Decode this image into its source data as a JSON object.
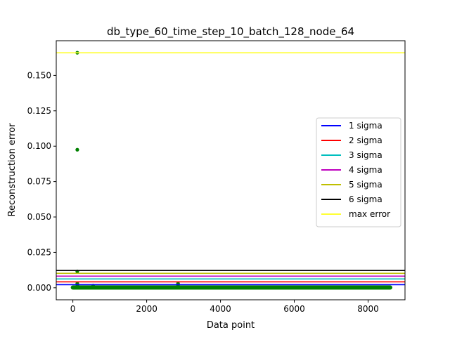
{
  "chart_data": {
    "type": "scatter",
    "title": "db_type_60_time_step_10_batch_128_node_64",
    "xlabel": "Data point",
    "ylabel": "Reconstruction error",
    "xlim": [
      -450,
      9000
    ],
    "ylim": [
      -0.0085,
      0.1745
    ],
    "xticks": [
      0,
      2000,
      4000,
      6000,
      8000
    ],
    "xtick_labels": [
      "0",
      "2000",
      "4000",
      "6000",
      "8000"
    ],
    "yticks": [
      0.0,
      0.025,
      0.05,
      0.075,
      0.1,
      0.125,
      0.15
    ],
    "ytick_labels": [
      "0.000",
      "0.025",
      "0.050",
      "0.075",
      "0.100",
      "0.125",
      "0.150"
    ],
    "legend_position": "center-right",
    "grid": false,
    "points_color": "#008000",
    "points": [
      {
        "x": 120,
        "y": 0.166
      },
      {
        "x": 120,
        "y": 0.0975
      },
      {
        "x": 120,
        "y": 0.0115
      },
      {
        "x": 120,
        "y": 0.003
      },
      {
        "x": 125,
        "y": 0.002
      },
      {
        "x": 550,
        "y": 0.0015
      },
      {
        "x": 2850,
        "y": 0.003
      },
      {
        "x": 2850,
        "y": 0.0022
      }
    ],
    "baseline_band": {
      "x_start": 0,
      "x_end": 8600,
      "y": 0.0002,
      "color": "#008000"
    },
    "hlines": [
      {
        "name": "1 sigma",
        "y": 0.0022,
        "color": "#0000ff"
      },
      {
        "name": "2 sigma",
        "y": 0.0042,
        "color": "#ff0000"
      },
      {
        "name": "3 sigma",
        "y": 0.0062,
        "color": "#00bfbf"
      },
      {
        "name": "4 sigma",
        "y": 0.0082,
        "color": "#bf00bf"
      },
      {
        "name": "5 sigma",
        "y": 0.0102,
        "color": "#bfbf00"
      },
      {
        "name": "6 sigma",
        "y": 0.0122,
        "color": "#000000"
      },
      {
        "name": "max error",
        "y": 0.166,
        "color": "#ffff33"
      }
    ]
  }
}
